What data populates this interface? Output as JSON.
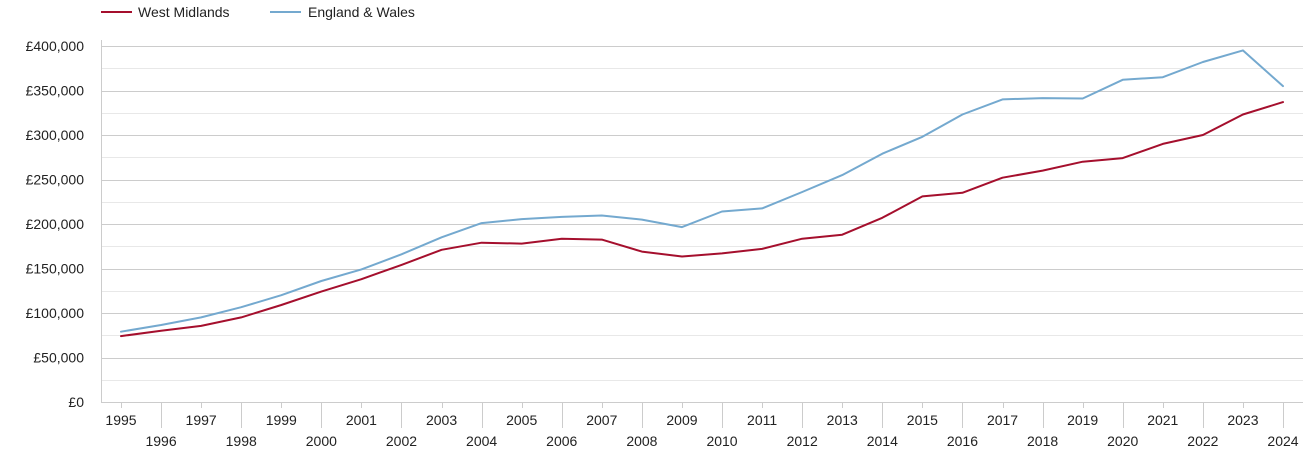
{
  "chart_data": {
    "type": "line",
    "title": "",
    "xlabel": "",
    "ylabel": "",
    "ylim": [
      0,
      400000
    ],
    "y_ticks": [
      0,
      50000,
      100000,
      150000,
      200000,
      250000,
      300000,
      350000,
      400000
    ],
    "y_tick_labels": [
      "£0",
      "£50,000",
      "£100,000",
      "£150,000",
      "£200,000",
      "£250,000",
      "£300,000",
      "£350,000",
      "£400,000"
    ],
    "x": [
      1995,
      1996,
      1997,
      1998,
      1999,
      2000,
      2001,
      2002,
      2003,
      2004,
      2005,
      2006,
      2007,
      2008,
      2009,
      2010,
      2011,
      2012,
      2013,
      2014,
      2015,
      2016,
      2017,
      2018,
      2019,
      2020,
      2021,
      2022,
      2023,
      2024
    ],
    "x_tick_labels": [
      "1995",
      "1996",
      "1997",
      "1998",
      "1999",
      "2000",
      "2001",
      "2002",
      "2003",
      "2004",
      "2005",
      "2006",
      "2007",
      "2008",
      "2009",
      "2010",
      "2011",
      "2012",
      "2013",
      "2014",
      "2015",
      "2016",
      "2017",
      "2018",
      "2019",
      "2020",
      "2021",
      "2022",
      "2023",
      "2024"
    ],
    "grid": true,
    "legend_position": "top-left",
    "series": [
      {
        "name": "West Midlands",
        "color": "#a50f2d",
        "values": [
          74000,
          80000,
          85500,
          95000,
          109000,
          124000,
          138000,
          154000,
          171000,
          179000,
          178000,
          183500,
          182500,
          169000,
          163500,
          167000,
          172000,
          183500,
          188000,
          207000,
          231000,
          235000,
          252000,
          260000,
          270000,
          274000,
          290000,
          300000,
          323000,
          337000
        ]
      },
      {
        "name": "England & Wales",
        "color": "#74a9cf",
        "values": [
          79000,
          86500,
          95000,
          106500,
          120000,
          136000,
          149000,
          166000,
          185000,
          201000,
          205500,
          208000,
          209500,
          205000,
          196500,
          214000,
          217500,
          236000,
          255000,
          279000,
          298000,
          323000,
          340000,
          341500,
          341000,
          362000,
          365000,
          382000,
          395000,
          355000
        ]
      }
    ]
  }
}
